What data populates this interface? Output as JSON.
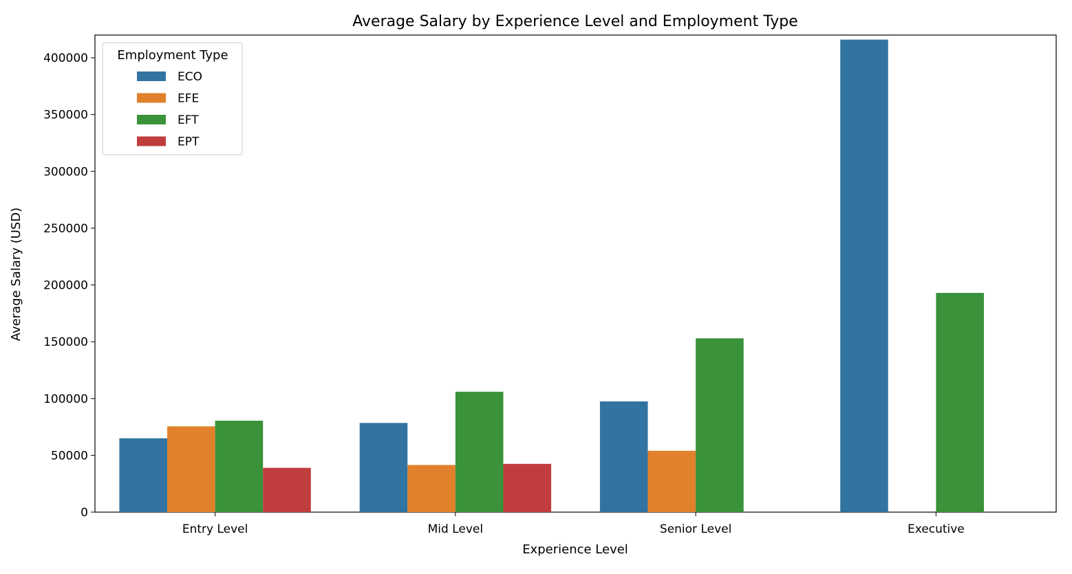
{
  "chart_data": {
    "type": "bar",
    "title": "Average Salary by Experience Level and Employment Type",
    "xlabel": "Experience Level",
    "ylabel": "Average Salary (USD)",
    "categories": [
      "Entry Level",
      "Mid Level",
      "Senior Level",
      "Executive"
    ],
    "ylim": [
      0,
      420000
    ],
    "yticks": [
      0,
      50000,
      100000,
      150000,
      200000,
      250000,
      300000,
      350000,
      400000
    ],
    "series": [
      {
        "name": "ECO",
        "color": "#3274a1",
        "values": [
          65000,
          78500,
          97500,
          416000
        ]
      },
      {
        "name": "EFE",
        "color": "#e1812c",
        "values": [
          75500,
          41500,
          54000,
          null
        ]
      },
      {
        "name": "EFT",
        "color": "#3a923a",
        "values": [
          80500,
          106000,
          153000,
          193000
        ]
      },
      {
        "name": "EPT",
        "color": "#c03d3e",
        "values": [
          39000,
          42500,
          null,
          null
        ]
      }
    ],
    "legend": {
      "title": "Employment Type",
      "position": "upper-left"
    },
    "grid": false
  }
}
